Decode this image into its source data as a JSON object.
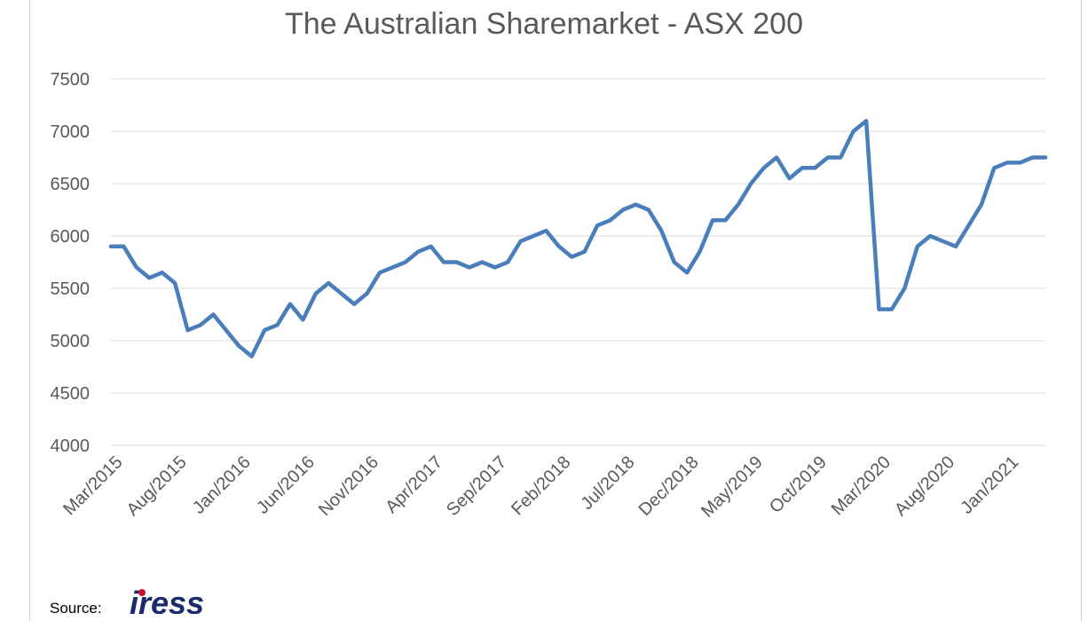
{
  "chart_data": {
    "type": "line",
    "title": "The Australian Sharemarket - ASX 200",
    "xlabel": "",
    "ylabel": "",
    "ylim": [
      4000,
      7500
    ],
    "yticks": [
      4000,
      4500,
      5000,
      5500,
      6000,
      6500,
      7000,
      7500
    ],
    "xlim": [
      "2015-03",
      "2021-04"
    ],
    "xticks": [
      "Mar/2015",
      "Aug/2015",
      "Jan/2016",
      "Jun/2016",
      "Nov/2016",
      "Apr/2017",
      "Sep/2017",
      "Feb/2018",
      "Jul/2018",
      "Dec/2018",
      "May/2019",
      "Oct/2019",
      "Mar/2020",
      "Aug/2020",
      "Jan/2021"
    ],
    "grid": true,
    "line_color": "#4a7ebb",
    "series": [
      {
        "name": "",
        "x": [
          "2015-03",
          "2015-04",
          "2015-05",
          "2015-06",
          "2015-07",
          "2015-08",
          "2015-09",
          "2015-10",
          "2015-11",
          "2015-12",
          "2016-01",
          "2016-02",
          "2016-03",
          "2016-04",
          "2016-05",
          "2016-06",
          "2016-07",
          "2016-08",
          "2016-09",
          "2016-10",
          "2016-11",
          "2016-12",
          "2017-01",
          "2017-02",
          "2017-03",
          "2017-04",
          "2017-05",
          "2017-06",
          "2017-07",
          "2017-08",
          "2017-09",
          "2017-10",
          "2017-11",
          "2017-12",
          "2018-01",
          "2018-02",
          "2018-03",
          "2018-04",
          "2018-05",
          "2018-06",
          "2018-07",
          "2018-08",
          "2018-09",
          "2018-10",
          "2018-11",
          "2018-12",
          "2019-01",
          "2019-02",
          "2019-03",
          "2019-04",
          "2019-05",
          "2019-06",
          "2019-07",
          "2019-08",
          "2019-09",
          "2019-10",
          "2019-11",
          "2019-12",
          "2020-01",
          "2020-02",
          "2020-03",
          "2020-04",
          "2020-05",
          "2020-06",
          "2020-07",
          "2020-08",
          "2020-09",
          "2020-10",
          "2020-11",
          "2020-12",
          "2021-01",
          "2021-02",
          "2021-03",
          "2021-04"
        ],
        "y": [
          5900,
          5900,
          5700,
          5600,
          5650,
          5550,
          5100,
          5150,
          5250,
          5100,
          4950,
          4850,
          5100,
          5150,
          5350,
          5200,
          5450,
          5550,
          5450,
          5350,
          5450,
          5650,
          5700,
          5750,
          5850,
          5900,
          5750,
          5750,
          5700,
          5750,
          5700,
          5750,
          5950,
          6000,
          6050,
          5900,
          5800,
          5850,
          6100,
          6150,
          6250,
          6300,
          6250,
          6050,
          5750,
          5650,
          5850,
          6150,
          6150,
          6300,
          6500,
          6650,
          6750,
          6550,
          6650,
          6650,
          6750,
          6750,
          7000,
          7100,
          5300,
          5300,
          5500,
          5900,
          6000,
          5950,
          5900,
          6100,
          6300,
          6650,
          6700,
          6700,
          6750,
          6750
        ]
      }
    ]
  },
  "source_label": "Source:",
  "logo_text": "iress"
}
